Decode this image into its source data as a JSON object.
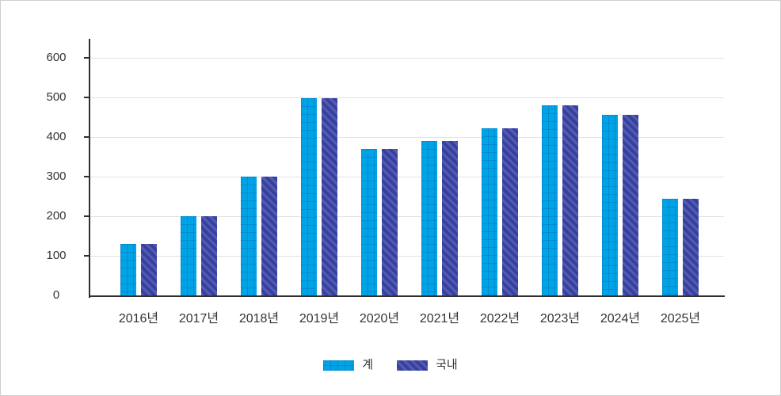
{
  "chart_data": {
    "type": "bar",
    "title": "",
    "xlabel": "",
    "ylabel": "",
    "categories": [
      "2016년",
      "2017년",
      "2018년",
      "2019년",
      "2020년",
      "2021년",
      "2022년",
      "2023년",
      "2024년",
      "2025년"
    ],
    "series": [
      {
        "name": "계",
        "values": [
          131,
          201,
          300,
          498,
          371,
          391,
          423,
          481,
          456,
          244
        ],
        "color": "#00a3e6",
        "pattern": "grid"
      },
      {
        "name": "국내",
        "values": [
          131,
          201,
          300,
          498,
          371,
          391,
          423,
          481,
          456,
          244
        ],
        "color": "#3640a1",
        "pattern": "diagonal-stripes"
      }
    ],
    "y_ticks": [
      0,
      100,
      200,
      300,
      400,
      500,
      600
    ],
    "ylim": [
      0,
      600
    ],
    "grid": true,
    "legend_position": "bottom"
  },
  "colors": {
    "series_total": "#00a3e6",
    "series_domestic": "#3640a1",
    "axis": "#2f2f2f",
    "gridline": "#e2e2e2",
    "text": "#333333",
    "frame_border": "#cfcfcf",
    "background": "#ffffff"
  }
}
